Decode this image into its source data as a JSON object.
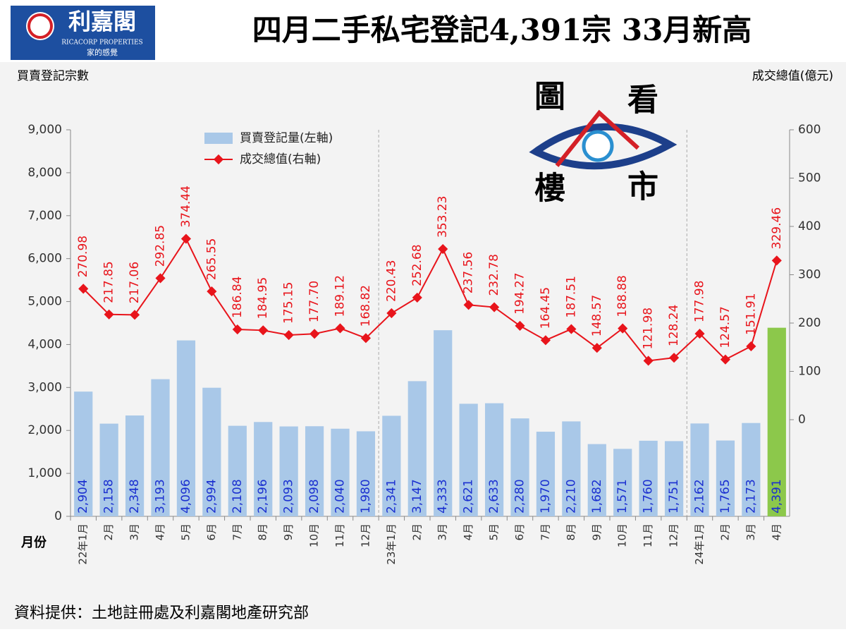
{
  "header": {
    "logo_name": "利嘉閣",
    "logo_english": "RICACORP PROPERTIES",
    "logo_slogan": "家的感覺"
  },
  "chart_data": {
    "type": "bar",
    "title": "四月二手私宅登記4,391宗  33月新高",
    "y_axis_title": "買賣登記宗數",
    "y2_axis_title": "成交總值(億元)",
    "x_axis_title": "月份",
    "watermark": [
      "圖",
      "看",
      "樓",
      "市"
    ],
    "source": "資料提供：土地註冊處及利嘉閣地產研究部",
    "categories": [
      "22年1月",
      "2月",
      "3月",
      "4月",
      "5月",
      "6月",
      "7月",
      "8月",
      "9月",
      "10月",
      "11月",
      "12月",
      "23年1月",
      "2月",
      "3月",
      "4月",
      "5月",
      "6月",
      "7月",
      "8月",
      "9月",
      "10月",
      "11月",
      "12月",
      "24年1月",
      "2月",
      "3月",
      "4月"
    ],
    "series": [
      {
        "name": "買賣登記量(左軸)",
        "type": "bar",
        "color": "#a9c8e8",
        "colors": [
          "#a9c8e8",
          "#a9c8e8",
          "#a9c8e8",
          "#a9c8e8",
          "#a9c8e8",
          "#a9c8e8",
          "#a9c8e8",
          "#a9c8e8",
          "#a9c8e8",
          "#a9c8e8",
          "#a9c8e8",
          "#a9c8e8",
          "#a9c8e8",
          "#a9c8e8",
          "#a9c8e8",
          "#a9c8e8",
          "#a9c8e8",
          "#a9c8e8",
          "#a9c8e8",
          "#a9c8e8",
          "#a9c8e8",
          "#a9c8e8",
          "#a9c8e8",
          "#a9c8e8",
          "#a9c8e8",
          "#a9c8e8",
          "#a9c8e8",
          "#8cc84b"
        ],
        "values": [
          2904,
          2158,
          2348,
          3193,
          4096,
          2994,
          2108,
          2196,
          2093,
          2098,
          2040,
          1980,
          2341,
          3147,
          4333,
          2621,
          2633,
          2280,
          1970,
          2210,
          1682,
          1571,
          1760,
          1751,
          2162,
          1765,
          2173,
          4391
        ],
        "value_labels": [
          "2,904",
          "2,158",
          "2,348",
          "3,193",
          "4,096",
          "2,994",
          "2,108",
          "2,196",
          "2,093",
          "2,098",
          "2,040",
          "1,980",
          "2,341",
          "3,147",
          "4,333",
          "2,621",
          "2,633",
          "2,280",
          "1,970",
          "2,210",
          "1,682",
          "1,571",
          "1,760",
          "1,751",
          "2,162",
          "1,765",
          "2,173",
          "4,391"
        ]
      },
      {
        "name": "成交總值(右軸)",
        "type": "line",
        "axis": "y2",
        "color": "#e8141b",
        "values": [
          270.98,
          217.85,
          217.06,
          292.85,
          374.44,
          265.55,
          186.84,
          184.95,
          175.15,
          177.7,
          189.12,
          168.82,
          220.43,
          252.68,
          353.23,
          237.56,
          232.78,
          194.27,
          164.45,
          187.51,
          148.57,
          188.88,
          121.98,
          128.24,
          177.98,
          124.57,
          151.91,
          329.46
        ],
        "value_labels": [
          "270.98",
          "217.85",
          "217.06",
          "292.85",
          "374.44",
          "265.55",
          "186.84",
          "184.95",
          "175.15",
          "177.70",
          "189.12",
          "168.82",
          "220.43",
          "252.68",
          "353.23",
          "237.56",
          "232.78",
          "194.27",
          "164.45",
          "187.51",
          "148.57",
          "188.88",
          "121.98",
          "128.24",
          "177.98",
          "124.57",
          "151.91",
          "329.46"
        ]
      }
    ],
    "ylim": [
      0,
      9000
    ],
    "yticks": [
      0,
      {
        "value": 1000,
        "label": "1,000"
      },
      {
        "value": 2000,
        "label": "2,000"
      },
      {
        "value": 3000,
        "label": "3,000"
      },
      {
        "value": 4000,
        "label": "4,000"
      },
      {
        "value": 5000,
        "label": "5,000"
      },
      {
        "value": 6000,
        "label": "6,000"
      },
      {
        "value": 7000,
        "label": "7,000"
      },
      {
        "value": 8000,
        "label": "8,000"
      },
      {
        "value": 9000,
        "label": "9,000"
      }
    ],
    "y2lim": [
      -200,
      600
    ],
    "y2ticks": [
      0,
      100,
      200,
      300,
      400,
      500,
      600
    ],
    "legend": "top-left"
  }
}
